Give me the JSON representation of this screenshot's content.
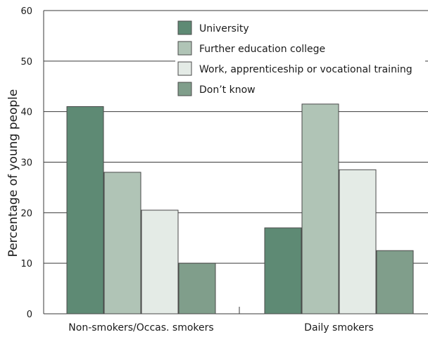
{
  "chart_data": {
    "type": "bar",
    "title": "",
    "xlabel": "",
    "ylabel": "Percentage of young people",
    "ylim": [
      0,
      60
    ],
    "yticks": [
      0,
      10,
      20,
      30,
      40,
      50,
      60
    ],
    "grid": true,
    "legend_position": "top-right",
    "categories": [
      "Non-smokers/Occas. smokers",
      "Daily smokers"
    ],
    "series": [
      {
        "name": "University",
        "values": [
          41,
          17
        ],
        "color": "#5e8a74"
      },
      {
        "name": "Further education college",
        "values": [
          28,
          41.5
        ],
        "color": "#b0c4b6"
      },
      {
        "name": "Work, apprenticeship or vocational training",
        "values": [
          20.5,
          28.5
        ],
        "color": "#e4ebe6"
      },
      {
        "name": "Don’t know",
        "values": [
          10,
          12.5
        ],
        "color": "#809e8b"
      }
    ]
  }
}
